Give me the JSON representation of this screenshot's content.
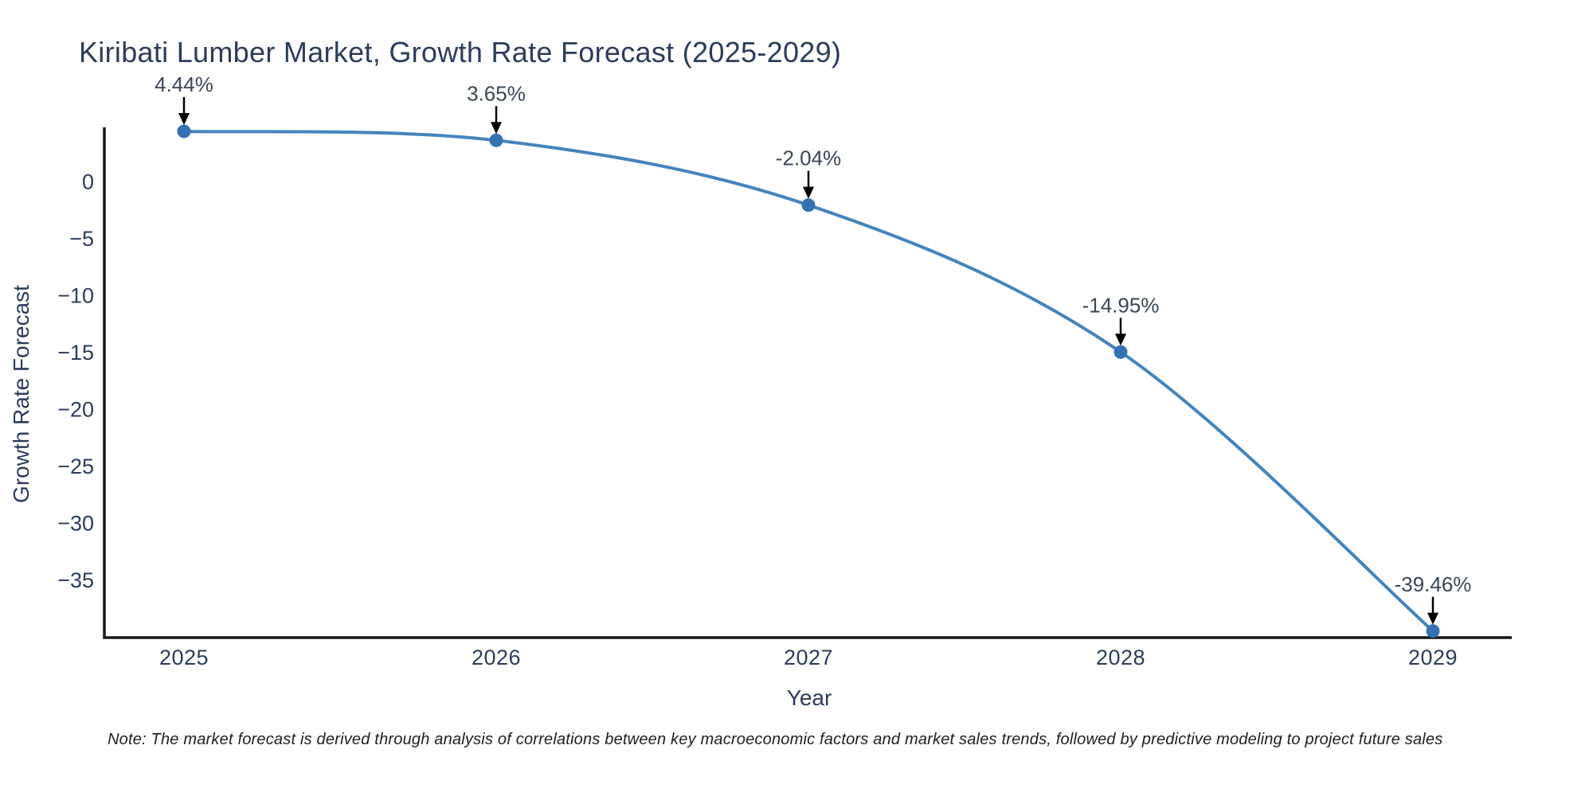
{
  "note": "Note: The market forecast is derived through analysis of correlations between key macroeconomic factors and market sales trends, followed by predictive modeling to project future sales",
  "chart_data": {
    "type": "line",
    "title": "Kiribati Lumber Market, Growth Rate Forecast (2025-2029)",
    "xlabel": "Year",
    "ylabel": "Growth Rate Forecast",
    "categories": [
      "2025",
      "2026",
      "2027",
      "2028",
      "2029"
    ],
    "values": [
      4.44,
      3.65,
      -2.04,
      -14.95,
      -39.46
    ],
    "series": [
      {
        "name": "Growth Rate Forecast",
        "values": [
          4.44,
          3.65,
          -2.04,
          -14.95,
          -39.46
        ]
      }
    ],
    "point_labels": [
      "4.44%",
      "3.65%",
      "-2.04%",
      "-14.95%",
      "-39.46%"
    ],
    "ytick_values": [
      0,
      -5,
      -10,
      -15,
      -20,
      -25,
      -30,
      -35
    ],
    "ytick_labels": [
      "0",
      "−5",
      "−10",
      "−15",
      "−20",
      "−25",
      "−30",
      "−35"
    ],
    "ylim": [
      -40.1,
      4.8
    ],
    "grid": false,
    "legend": "none",
    "line_shape": "spline",
    "annotation_arrows": true,
    "colors": {
      "line": "#4484bd",
      "marker": "#3473b3",
      "axis": "#161616",
      "text": "#2b3d5c",
      "annotation": "#3a4656",
      "arrow": "#000000",
      "background": "#ffffff"
    }
  }
}
